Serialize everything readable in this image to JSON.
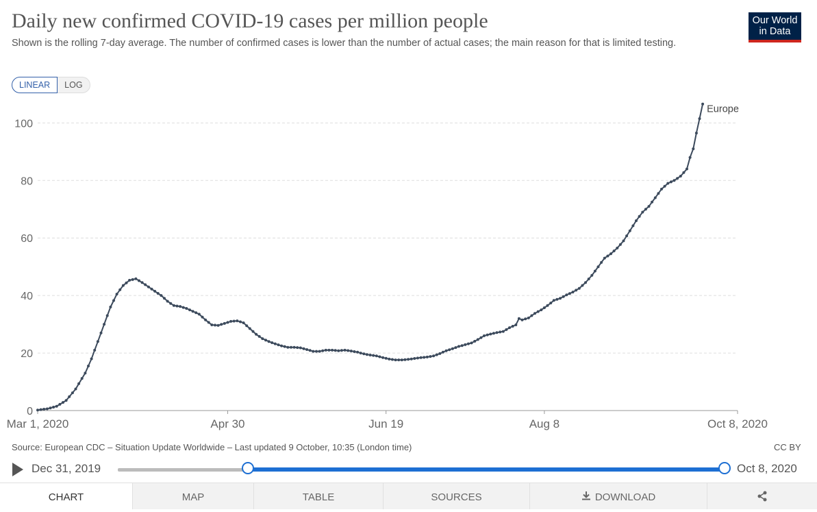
{
  "header": {
    "title": "Daily new confirmed COVID-19 cases per million people",
    "subtitle": "Shown is the rolling 7-day average. The number of confirmed cases is lower than the number of actual cases; the main reason for that is limited testing.",
    "logo_line1": "Our World",
    "logo_line2": "in Data"
  },
  "scale_toggle": {
    "linear": "LINEAR",
    "log": "LOG",
    "selected": "LINEAR"
  },
  "chart_data": {
    "type": "line",
    "title": "Daily new confirmed COVID-19 cases per million people",
    "xlabel": "",
    "ylabel": "",
    "x_start": "Mar 1, 2020",
    "x_end": "Oct 8, 2020",
    "num_days": 222,
    "ylim": [
      0,
      107
    ],
    "yticks": [
      0,
      20,
      40,
      60,
      80,
      100
    ],
    "xticks": [
      {
        "day": 0,
        "label": "Mar 1, 2020"
      },
      {
        "day": 60,
        "label": "Apr 30"
      },
      {
        "day": 110,
        "label": "Jun 19"
      },
      {
        "day": 160,
        "label": "Aug 8"
      },
      {
        "day": 221,
        "label": "Oct 8, 2020"
      }
    ],
    "grid": true,
    "series": [
      {
        "name": "Europe",
        "color": "#3c4a5c",
        "keypoints": [
          [
            0,
            0.2
          ],
          [
            3,
            0.6
          ],
          [
            6,
            1.5
          ],
          [
            9,
            3.5
          ],
          [
            12,
            7.5
          ],
          [
            15,
            13
          ],
          [
            17,
            18
          ],
          [
            19,
            24
          ],
          [
            21,
            30
          ],
          [
            23,
            36
          ],
          [
            25,
            40.5
          ],
          [
            27,
            43.5
          ],
          [
            29,
            45.3
          ],
          [
            31,
            45.8
          ],
          [
            33,
            44.5
          ],
          [
            35,
            43
          ],
          [
            37,
            41.5
          ],
          [
            39,
            40
          ],
          [
            41,
            38
          ],
          [
            43,
            36.5
          ],
          [
            45,
            36.2
          ],
          [
            47,
            35.5
          ],
          [
            49,
            34.5
          ],
          [
            51,
            33.5
          ],
          [
            53,
            31.5
          ],
          [
            55,
            29.8
          ],
          [
            57,
            29.6
          ],
          [
            59,
            30.3
          ],
          [
            61,
            31
          ],
          [
            63,
            31.2
          ],
          [
            65,
            30.5
          ],
          [
            67,
            28.5
          ],
          [
            69,
            26.5
          ],
          [
            71,
            25
          ],
          [
            73,
            24
          ],
          [
            75,
            23.2
          ],
          [
            77,
            22.5
          ],
          [
            79,
            22
          ],
          [
            81,
            22
          ],
          [
            83,
            21.8
          ],
          [
            85,
            21.2
          ],
          [
            87,
            20.6
          ],
          [
            89,
            20.6
          ],
          [
            91,
            21
          ],
          [
            93,
            21
          ],
          [
            95,
            20.8
          ],
          [
            97,
            21
          ],
          [
            99,
            20.7
          ],
          [
            101,
            20.3
          ],
          [
            103,
            19.7
          ],
          [
            105,
            19.3
          ],
          [
            107,
            19
          ],
          [
            109,
            18.4
          ],
          [
            111,
            17.9
          ],
          [
            113,
            17.6
          ],
          [
            115,
            17.6
          ],
          [
            117,
            17.8
          ],
          [
            119,
            18.1
          ],
          [
            121,
            18.4
          ],
          [
            123,
            18.6
          ],
          [
            125,
            19
          ],
          [
            127,
            19.8
          ],
          [
            129,
            20.8
          ],
          [
            131,
            21.5
          ],
          [
            133,
            22.3
          ],
          [
            135,
            22.9
          ],
          [
            137,
            23.5
          ],
          [
            139,
            24.7
          ],
          [
            141,
            26
          ],
          [
            143,
            26.6
          ],
          [
            145,
            27.1
          ],
          [
            147,
            27.5
          ],
          [
            149,
            28.8
          ],
          [
            151,
            29.8
          ],
          [
            152,
            32
          ],
          [
            153,
            31.5
          ],
          [
            155,
            32.2
          ],
          [
            157,
            33.8
          ],
          [
            159,
            35
          ],
          [
            161,
            36.5
          ],
          [
            163,
            38.3
          ],
          [
            165,
            39
          ],
          [
            167,
            40.2
          ],
          [
            169,
            41.2
          ],
          [
            171,
            42.5
          ],
          [
            173,
            44.5
          ],
          [
            175,
            47
          ],
          [
            177,
            50
          ],
          [
            179,
            53
          ],
          [
            181,
            54.5
          ],
          [
            183,
            56.5
          ],
          [
            185,
            59
          ],
          [
            187,
            62.5
          ],
          [
            189,
            66
          ],
          [
            191,
            69
          ],
          [
            193,
            71
          ],
          [
            195,
            74
          ],
          [
            197,
            77
          ],
          [
            199,
            79
          ],
          [
            201,
            80
          ],
          [
            203,
            81.5
          ],
          [
            205,
            84
          ],
          [
            206,
            88
          ],
          [
            207,
            91
          ],
          [
            208,
            96.5
          ],
          [
            209,
            101.5
          ],
          [
            210,
            106.6
          ]
        ]
      }
    ],
    "annotations": [
      {
        "text": "Europe",
        "at_day": 210
      }
    ]
  },
  "footer": {
    "source": "Source: European CDC – Situation Update Worldwide – Last updated 9 October, 10:35 (London time)",
    "license": "CC BY"
  },
  "timeline": {
    "start_label": "Dec 31, 2019",
    "end_label": "Oct 8, 2020",
    "range_start_fraction": 0.215,
    "range_end_fraction": 1.0
  },
  "tabs": [
    {
      "label": "CHART",
      "active": true
    },
    {
      "label": "MAP",
      "active": false
    },
    {
      "label": "TABLE",
      "active": false
    },
    {
      "label": "SOURCES",
      "active": false
    },
    {
      "label": "DOWNLOAD",
      "active": false
    },
    {
      "label": "",
      "active": false
    }
  ],
  "colors": {
    "accent": "#1d6fd3",
    "line": "#3c4a5c",
    "logo_bg": "#002147",
    "logo_bar": "#ce261e"
  }
}
